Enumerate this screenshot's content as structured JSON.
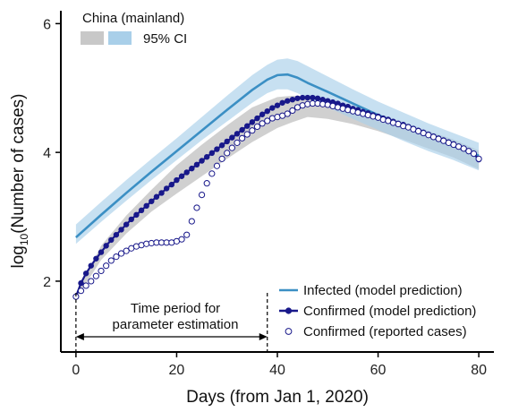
{
  "chart_data": {
    "type": "line",
    "title": "China (mainland)",
    "xlabel": "Days (from Jan 1, 2020)",
    "ylabel_base": "log",
    "ylabel_sub": "10",
    "ylabel_rest": "(Number of cases)",
    "xlim": [
      -3,
      83
    ],
    "ylim": [
      0.9,
      6.2
    ],
    "x_ticks": [
      0,
      20,
      40,
      60,
      80
    ],
    "y_ticks": [
      2,
      4,
      6
    ],
    "ci_legend_label": "95% CI",
    "annotation": {
      "line1": "Time period for",
      "line2": "parameter estimation",
      "x_start": 0,
      "x_end": 38
    },
    "series": [
      {
        "name": "Infected (model prediction)",
        "color": "#3b8fc4",
        "ci_color": "#a9cfe9",
        "x": [
          0,
          5,
          10,
          15,
          20,
          25,
          30,
          35,
          38,
          40,
          42,
          44,
          46,
          50,
          55,
          60,
          65,
          70,
          75,
          80
        ],
        "y": [
          2.68,
          3.03,
          3.37,
          3.7,
          4.02,
          4.34,
          4.66,
          4.97,
          5.13,
          5.2,
          5.21,
          5.16,
          5.08,
          4.94,
          4.76,
          4.58,
          4.42,
          4.26,
          4.1,
          3.95
        ],
        "ci_upper": [
          2.88,
          3.23,
          3.57,
          3.9,
          4.22,
          4.55,
          4.88,
          5.2,
          5.36,
          5.44,
          5.46,
          5.42,
          5.34,
          5.18,
          4.98,
          4.79,
          4.62,
          4.45,
          4.3,
          4.15
        ],
        "ci_lower": [
          2.58,
          2.92,
          3.25,
          3.57,
          3.88,
          4.19,
          4.48,
          4.77,
          4.92,
          4.98,
          4.98,
          4.92,
          4.84,
          4.7,
          4.52,
          4.35,
          4.18,
          4.02,
          3.88,
          3.72
        ]
      },
      {
        "name": "Confirmed (model prediction)",
        "color": "#18188a",
        "ci_color": "#c8c8c8",
        "x": [
          0,
          1,
          2,
          3,
          4,
          5,
          6,
          7,
          8,
          9,
          10,
          11,
          12,
          13,
          14,
          15,
          16,
          17,
          18,
          19,
          20,
          21,
          22,
          23,
          24,
          25,
          26,
          27,
          28,
          29,
          30,
          31,
          32,
          33,
          34,
          35,
          36,
          37,
          38,
          39,
          40,
          41,
          42,
          43,
          44,
          45,
          46,
          47,
          48,
          49,
          50,
          51,
          52,
          53,
          54,
          55,
          56,
          57,
          58,
          59,
          60,
          61,
          62,
          63,
          64,
          65,
          66,
          67,
          68,
          69,
          70,
          71,
          72,
          73,
          74,
          75,
          76,
          77,
          78,
          79,
          80
        ],
        "y": [
          1.76,
          1.97,
          2.12,
          2.24,
          2.35,
          2.45,
          2.55,
          2.64,
          2.72,
          2.8,
          2.88,
          2.96,
          3.03,
          3.1,
          3.17,
          3.24,
          3.31,
          3.37,
          3.44,
          3.5,
          3.57,
          3.63,
          3.69,
          3.75,
          3.81,
          3.87,
          3.93,
          3.99,
          4.05,
          4.11,
          4.17,
          4.23,
          4.29,
          4.35,
          4.41,
          4.47,
          4.53,
          4.59,
          4.64,
          4.69,
          4.73,
          4.77,
          4.8,
          4.82,
          4.84,
          4.85,
          4.85,
          4.85,
          4.84,
          4.82,
          4.8,
          4.78,
          4.76,
          4.73,
          4.71,
          4.68,
          4.66,
          4.63,
          4.61,
          4.58,
          4.56,
          4.53,
          4.51,
          4.48,
          4.45,
          4.43,
          4.4,
          4.37,
          4.34,
          4.31,
          4.28,
          4.25,
          4.22,
          4.19,
          4.16,
          4.13,
          4.09,
          4.06,
          4.02,
          3.98,
          3.89
        ],
        "ci_upper_x": [
          0,
          5,
          10,
          15,
          20,
          25,
          30,
          35,
          40,
          43,
          46,
          50,
          55,
          60,
          65,
          70,
          75,
          80
        ],
        "ci_upper": [
          1.8,
          2.55,
          3.02,
          3.42,
          3.8,
          4.12,
          4.42,
          4.7,
          4.86,
          4.88,
          4.87,
          4.83,
          4.72,
          4.6,
          4.47,
          4.33,
          4.2,
          4.03
        ],
        "ci_lower": [
          1.72,
          2.33,
          2.74,
          3.08,
          3.36,
          3.63,
          3.9,
          4.16,
          4.38,
          4.47,
          4.55,
          4.52,
          4.44,
          4.33,
          4.2,
          4.06,
          3.92,
          3.74
        ]
      },
      {
        "name": "Confirmed (reported cases)",
        "color": "#18188a",
        "x": [
          0,
          1,
          2,
          3,
          4,
          5,
          6,
          7,
          8,
          9,
          10,
          11,
          12,
          13,
          14,
          15,
          16,
          17,
          18,
          19,
          20,
          21,
          22,
          23,
          24,
          25,
          26,
          27,
          28,
          29,
          30,
          31,
          32,
          33,
          34,
          35,
          36,
          37,
          38,
          39,
          40,
          41,
          42,
          43,
          44,
          45,
          46,
          47,
          48,
          49,
          50,
          51,
          52,
          53,
          54,
          55,
          56,
          57,
          58,
          59,
          60,
          61,
          62,
          63,
          64,
          65,
          66,
          67,
          68,
          69,
          70,
          71,
          72,
          73,
          74,
          75,
          76,
          77,
          78,
          79,
          80
        ],
        "y": [
          1.76,
          1.85,
          1.93,
          2.0,
          2.08,
          2.16,
          2.24,
          2.32,
          2.38,
          2.43,
          2.47,
          2.51,
          2.54,
          2.56,
          2.58,
          2.59,
          2.6,
          2.6,
          2.6,
          2.6,
          2.62,
          2.65,
          2.72,
          2.93,
          3.14,
          3.34,
          3.52,
          3.67,
          3.79,
          3.9,
          3.99,
          4.07,
          4.15,
          4.22,
          4.28,
          4.34,
          4.4,
          4.45,
          4.49,
          4.53,
          4.55,
          4.57,
          4.6,
          4.65,
          4.7,
          4.73,
          4.75,
          4.76,
          4.76,
          4.75,
          4.74,
          4.72,
          4.7,
          4.68,
          4.66,
          4.64,
          4.62,
          4.6,
          4.58,
          4.56,
          4.54,
          4.51,
          4.49,
          4.46,
          4.44,
          4.41,
          4.39,
          4.36,
          4.33,
          4.3,
          4.27,
          4.24,
          4.21,
          4.18,
          4.15,
          4.12,
          4.09,
          4.06,
          4.02,
          3.98,
          3.9
        ]
      }
    ],
    "legend": {
      "placement": "bottom-right"
    }
  }
}
